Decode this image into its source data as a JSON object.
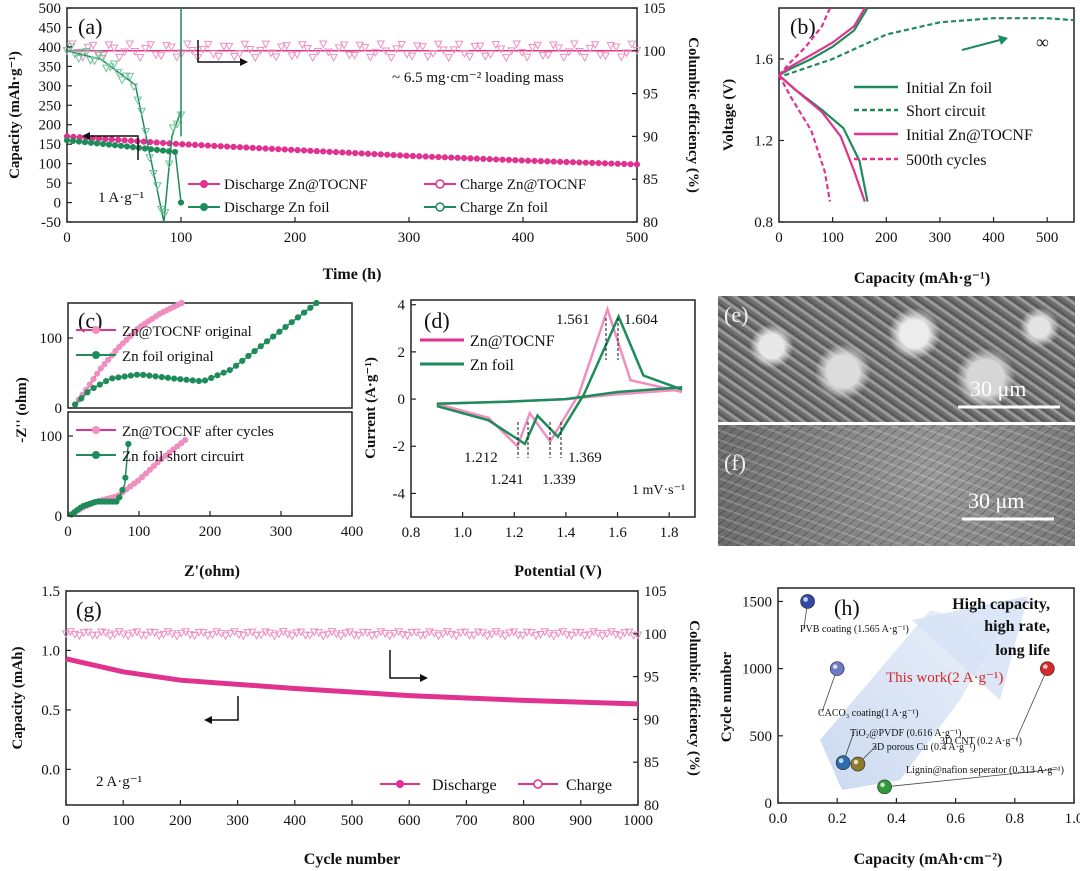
{
  "colors": {
    "pink": "#e0338f",
    "pink_light": "#ee8fc0",
    "green": "#1e8c5a",
    "green_light": "#6fc49a",
    "blue_arrow": "#b8cbe8"
  },
  "panels": {
    "a": {
      "label": "(a)",
      "xlabel": "Time (h)",
      "ylabel": "Capacity (mAh·g⁻¹)",
      "y2label": "Columbic efficiency (%)",
      "xticks": [
        "0",
        "100",
        "200",
        "300",
        "400",
        "500"
      ],
      "yticks": [
        "-50",
        "0",
        "50",
        "100",
        "150",
        "200",
        "250",
        "300",
        "350",
        "400",
        "450",
        "500"
      ],
      "y2ticks": [
        "80",
        "85",
        "90",
        "95",
        "100",
        "105"
      ],
      "annot_loading": "~ 6.5 mg·cm⁻² loading mass",
      "annot_rate": "1 A·g⁻¹",
      "legend": [
        "Discharge Zn@TOCNF",
        "Charge Zn@TOCNF",
        "Discharge Zn foil",
        "Charge Zn foil"
      ]
    },
    "b": {
      "label": "(b)",
      "xlabel": "Capacity (mAh·g⁻¹)",
      "ylabel": "Voltage (V)",
      "xticks": [
        "0",
        "100",
        "200",
        "300",
        "400",
        "500"
      ],
      "yticks": [
        "0.8",
        "1.2",
        "1.6"
      ],
      "infinity": "∞",
      "legend": [
        "Initial Zn foil",
        "Short circuit",
        "Initial Zn@TOCNF",
        "500th cycles"
      ]
    },
    "c": {
      "label": "(c)",
      "xlabel": "Z'(ohm)",
      "ylabel": "-Z'' (ohm)",
      "xticks": [
        "0",
        "100",
        "200",
        "300",
        "400"
      ],
      "yticks_top": [
        "0",
        "100"
      ],
      "yticks_bot": [
        "0",
        "100"
      ],
      "legend_top": [
        "Zn@TOCNF original",
        "Zn foil original"
      ],
      "legend_bot": [
        "Zn@TOCNF after cycles",
        "Zn foil short circuirt"
      ]
    },
    "d": {
      "label": "(d)",
      "xlabel": "Potential (V)",
      "ylabel": "Current (A·g⁻¹)",
      "xticks": [
        "0.8",
        "1.0",
        "1.2",
        "1.4",
        "1.6",
        "1.8"
      ],
      "yticks": [
        "-4",
        "-2",
        "0",
        "2",
        "4"
      ],
      "peaks": [
        "1.561",
        "1.604",
        "1.212",
        "1.241",
        "1.339",
        "1.369"
      ],
      "annot_rate": "1 mV·s⁻¹",
      "legend": [
        "Zn@TOCNF",
        "Zn foil"
      ]
    },
    "e": {
      "label": "(e)",
      "scale": "30 μm"
    },
    "f": {
      "label": "(f)",
      "scale": "30 μm"
    },
    "g": {
      "label": "(g)",
      "xlabel": "Cycle number",
      "ylabel": "Capacity (mAh)",
      "y2label": "Columbic efficiency (%)",
      "xticks": [
        "0",
        "100",
        "200",
        "300",
        "400",
        "500",
        "600",
        "700",
        "800",
        "900",
        "1000"
      ],
      "yticks": [
        "0.0",
        "0.5",
        "1.0",
        "1.5"
      ],
      "y2ticks": [
        "80",
        "85",
        "90",
        "95",
        "100",
        "105"
      ],
      "annot_rate": "2 A·g⁻¹",
      "legend": [
        "Discharge",
        "Charge"
      ]
    },
    "h": {
      "label": "(h)",
      "xlabel": "Capacity (mAh·cm⁻²)",
      "ylabel": "Cycle number",
      "xticks": [
        "0.0",
        "0.2",
        "0.4",
        "0.6",
        "0.8",
        "1.0"
      ],
      "yticks": [
        "0",
        "500",
        "1000",
        "1500"
      ],
      "headline": [
        "High capacity,",
        "high rate,",
        "long life"
      ],
      "this_work": "This work(2 A·g⁻¹)"
    }
  },
  "chart_data": [
    {
      "panel": "a",
      "type": "line",
      "x_range": [
        0,
        500
      ],
      "y_range": [
        -50,
        500
      ],
      "y2_range": [
        80,
        105
      ],
      "series": [
        {
          "name": "Discharge Zn@TOCNF",
          "axis": "left",
          "x": [
            0,
            50,
            100,
            200,
            300,
            400,
            500
          ],
          "y": [
            170,
            160,
            150,
            135,
            120,
            108,
            98
          ]
        },
        {
          "name": "Charge Zn@TOCNF",
          "axis": "right",
          "x": [
            0,
            100,
            200,
            300,
            400,
            500
          ],
          "y": [
            100,
            100,
            100,
            100,
            100,
            100
          ]
        },
        {
          "name": "Discharge Zn foil",
          "axis": "left",
          "x": [
            0,
            50,
            80,
            95,
            100
          ],
          "y": [
            160,
            145,
            135,
            130,
            0
          ]
        },
        {
          "name": "Charge Zn foil",
          "axis": "right",
          "x": [
            0,
            30,
            60,
            85,
            92,
            100
          ],
          "y": [
            100,
            99,
            96,
            80,
            90,
            93
          ]
        }
      ]
    },
    {
      "panel": "b",
      "type": "line",
      "x_range": [
        0,
        550
      ],
      "y_range": [
        0.8,
        1.85
      ],
      "series": [
        {
          "name": "Initial Zn foil",
          "x": [
            0,
            20,
            60,
            100,
            140,
            165
          ],
          "y": [
            1.52,
            1.55,
            1.6,
            1.66,
            1.74,
            1.85
          ]
        },
        {
          "name": "Short circuit",
          "x": [
            10,
            100,
            200,
            300,
            400,
            450,
            500,
            550
          ],
          "y": [
            1.52,
            1.6,
            1.72,
            1.78,
            1.8,
            1.8,
            1.8,
            1.79
          ]
        },
        {
          "name": "Initial Zn@TOCNF",
          "x": [
            0,
            20,
            60,
            100,
            140,
            160
          ],
          "y": [
            1.52,
            1.56,
            1.62,
            1.68,
            1.76,
            1.85
          ]
        },
        {
          "name": "500th cycles",
          "x": [
            0,
            20,
            50,
            80,
            95
          ],
          "y": [
            1.52,
            1.58,
            1.66,
            1.76,
            1.85
          ]
        }
      ]
    },
    {
      "panel": "c-top",
      "type": "line",
      "x_range": [
        0,
        400
      ],
      "y_range": [
        0,
        150
      ],
      "series": [
        {
          "name": "Zn@TOCNF original",
          "x": [
            10,
            25,
            45,
            70,
            100,
            130,
            160
          ],
          "y": [
            5,
            25,
            55,
            85,
            115,
            135,
            150
          ]
        },
        {
          "name": "Zn foil original",
          "x": [
            10,
            30,
            60,
            100,
            150,
            190,
            230,
            280,
            350
          ],
          "y": [
            5,
            25,
            42,
            48,
            42,
            38,
            55,
            95,
            150
          ]
        }
      ]
    },
    {
      "panel": "c-bot",
      "type": "line",
      "x_range": [
        0,
        400
      ],
      "y_range": [
        0,
        130
      ],
      "series": [
        {
          "name": "Zn@TOCNF after cycles",
          "x": [
            5,
            20,
            40,
            70,
            100,
            130,
            165
          ],
          "y": [
            2,
            10,
            18,
            25,
            45,
            70,
            95
          ]
        },
        {
          "name": "Zn foil short circuirt",
          "x": [
            5,
            20,
            40,
            70,
            80,
            85
          ],
          "y": [
            2,
            12,
            18,
            18,
            40,
            90
          ]
        }
      ]
    },
    {
      "panel": "d",
      "type": "line",
      "x_range": [
        0.8,
        1.9
      ],
      "y_range": [
        -5,
        4.2
      ],
      "series": [
        {
          "name": "Zn@TOCNF",
          "x": [
            0.9,
            1.1,
            1.212,
            1.26,
            1.339,
            1.45,
            1.561,
            1.65,
            1.85
          ],
          "y": [
            -0.2,
            -0.8,
            -2.0,
            -0.6,
            -1.8,
            0.2,
            3.8,
            0.8,
            0.3
          ]
        },
        {
          "name": "Zn foil",
          "x": [
            0.9,
            1.1,
            1.241,
            1.29,
            1.369,
            1.47,
            1.604,
            1.7,
            1.85
          ],
          "y": [
            -0.3,
            -0.9,
            -1.9,
            -0.7,
            -1.6,
            0.2,
            3.5,
            1.0,
            0.4
          ]
        }
      ]
    },
    {
      "panel": "g",
      "type": "line",
      "x_range": [
        0,
        1000
      ],
      "y_range": [
        -0.3,
        1.5
      ],
      "y2_range": [
        80,
        105
      ],
      "series": [
        {
          "name": "Discharge",
          "axis": "left",
          "x": [
            0,
            100,
            200,
            400,
            600,
            800,
            1000
          ],
          "y": [
            0.93,
            0.82,
            0.75,
            0.68,
            0.62,
            0.58,
            0.55
          ]
        },
        {
          "name": "Charge",
          "axis": "right",
          "x": [
            0,
            200,
            400,
            600,
            800,
            1000
          ],
          "y": [
            100,
            100,
            100,
            100,
            100,
            100
          ]
        }
      ]
    },
    {
      "panel": "h",
      "type": "scatter",
      "x_range": [
        0,
        1
      ],
      "y_range": [
        0,
        1600
      ],
      "points": [
        {
          "label": "PVB coating (1.565 A·g⁻¹)",
          "x": 0.1,
          "y": 1500,
          "color": "#3348a8"
        },
        {
          "label": "CACO₃ coating(1 A·g⁻¹)",
          "x": 0.2,
          "y": 1000,
          "color": "#6c78c8"
        },
        {
          "label": "3D CNT (0.2 A·g⁻¹)",
          "x": 0.91,
          "y": 1000,
          "color": "#d42a2a"
        },
        {
          "label": "TiO₂@PVDF (0.616 A·g⁻¹)",
          "x": 0.22,
          "y": 300,
          "color": "#2b6fb0"
        },
        {
          "label": "3D porous Cu (0.4 A·g⁻¹)",
          "x": 0.27,
          "y": 290,
          "color": "#8f7a2a"
        },
        {
          "label": "Lignin@nafion seperator (0.313 A·g⁻¹)",
          "x": 0.36,
          "y": 120,
          "color": "#2f9a3a"
        }
      ]
    }
  ]
}
